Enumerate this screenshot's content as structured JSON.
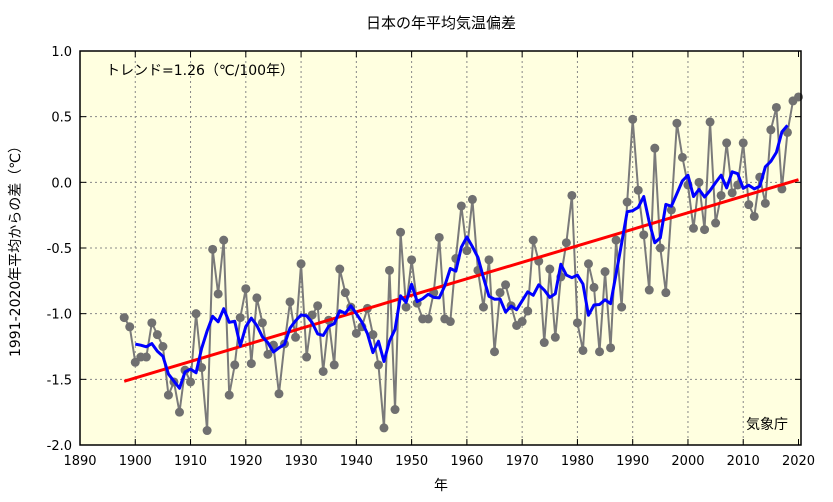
{
  "chart_data": {
    "type": "line",
    "title": "日本の年平均気温偏差",
    "xlabel": "年",
    "ylabel": "1991-2020年平均からの差（℃）",
    "trend_label": "トレンド=1.26（℃/100年）",
    "credit": "気象庁",
    "xlim": [
      1890,
      2020
    ],
    "ylim": [
      -2.0,
      1.0
    ],
    "x_ticks": [
      "1890",
      "1900",
      "1910",
      "1920",
      "1930",
      "1940",
      "1950",
      "1960",
      "1970",
      "1980",
      "1990",
      "2000",
      "2010",
      "2020"
    ],
    "y_ticks": [
      "1.0",
      "0.5",
      "0.0",
      "-0.5",
      "-1.0",
      "-1.5",
      "-2.0"
    ],
    "grid": true,
    "start_year": 1898,
    "values": [
      -1.03,
      -1.1,
      -1.37,
      -1.33,
      -1.33,
      -1.07,
      -1.16,
      -1.25,
      -1.62,
      -1.52,
      -1.75,
      -1.43,
      -1.52,
      -1.0,
      -1.41,
      -1.89,
      -0.51,
      -0.85,
      -0.44,
      -1.62,
      -1.39,
      -1.03,
      -0.81,
      -1.38,
      -0.88,
      -1.07,
      -1.31,
      -1.24,
      -1.61,
      -1.23,
      -0.91,
      -1.18,
      -0.62,
      -1.33,
      -1.01,
      -0.94,
      -1.44,
      -1.05,
      -1.39,
      -0.66,
      -0.84,
      -0.95,
      -1.15,
      -1.1,
      -0.96,
      -1.16,
      -1.39,
      -1.87,
      -0.67,
      -1.73,
      -0.38,
      -0.95,
      -0.59,
      -0.92,
      -1.04,
      -1.04,
      -0.84,
      -0.42,
      -1.04,
      -1.06,
      -0.58,
      -0.18,
      -0.52,
      -0.13,
      -0.67,
      -0.95,
      -0.59,
      -1.29,
      -0.84,
      -0.78,
      -0.94,
      -1.09,
      -1.06,
      -0.98,
      -0.44,
      -0.6,
      -1.22,
      -0.66,
      -1.18,
      -0.72,
      -0.46,
      -0.1,
      -1.07,
      -1.28,
      -0.62,
      -0.8,
      -1.29,
      -0.68,
      -1.26,
      -0.44,
      -0.95,
      -0.15,
      0.48,
      -0.06,
      -0.4,
      -0.82,
      0.26,
      -0.5,
      -0.84,
      -0.21,
      0.45,
      0.19,
      -0.02,
      -0.35,
      0.0,
      -0.36,
      0.46,
      -0.31,
      -0.1,
      0.3,
      -0.08,
      -0.02,
      0.3,
      -0.17,
      -0.26,
      0.04,
      -0.16,
      0.4,
      0.57,
      -0.05,
      0.38,
      0.62,
      0.65
    ],
    "series_styles": {
      "annual": "#707070",
      "moving_average_5yr": "#0000ff",
      "trend": "#ff0000"
    },
    "background": "#ffffe0"
  }
}
